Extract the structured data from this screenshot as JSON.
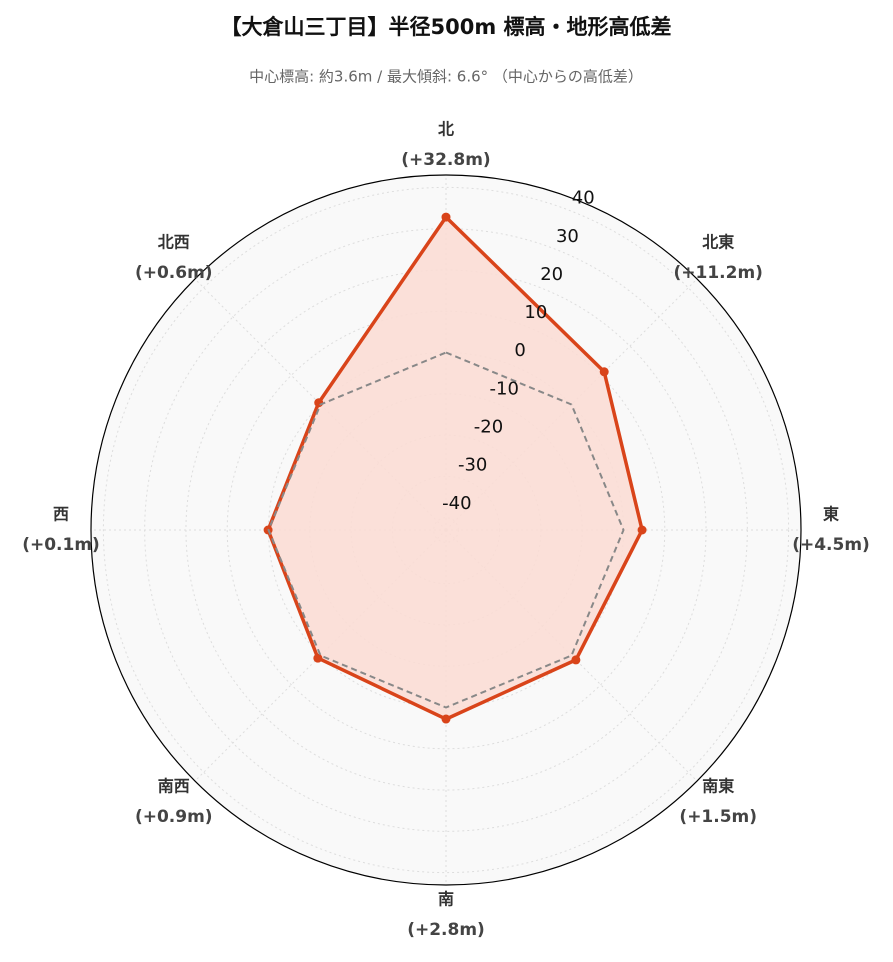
{
  "chart_data": {
    "type": "radar",
    "title": "【大倉山三丁目】半径500m 標高・地形高低差",
    "subtitle": "中心標高: 約3.6m / 最大傾斜: 6.6° （中心からの高低差）",
    "categories": [
      "北",
      "北東",
      "東",
      "南東",
      "南",
      "南西",
      "西",
      "北西"
    ],
    "value_labels": [
      "(+32.8m)",
      "(+11.2m)",
      "(+4.5m)",
      "(+1.5m)",
      "(+2.8m)",
      "(+0.9m)",
      "(+0.1m)",
      "(+0.6m)"
    ],
    "series": [
      {
        "color": "#d9441a",
        "fill": "#fbdcd4",
        "linestyle": "solid",
        "values": [
          32.8,
          11.2,
          4.5,
          1.5,
          2.8,
          0.9,
          0.1,
          0.6
        ]
      },
      {
        "color": "#888888",
        "linestyle": "dashed",
        "values": [
          0,
          0,
          0,
          0,
          0,
          0,
          0,
          0
        ]
      }
    ],
    "ylim": [
      -43,
      43
    ],
    "yticks": [
      -40,
      -30,
      -20,
      -10,
      0,
      10,
      20,
      30,
      40
    ],
    "grid": true
  }
}
